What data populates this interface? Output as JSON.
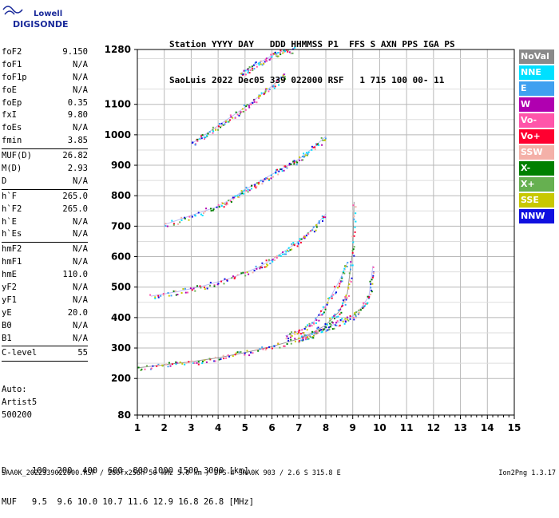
{
  "logo": {
    "line1": "Lowell",
    "line2": "DIGISONDE"
  },
  "header": {
    "labels": "Station YYYY DAY   DDD HHMMSS P1  FFS S AXN PPS IGA PS",
    "values": "SaoLuis 2022 Dec05 339 022000 RSF   1 715 100 00- 11"
  },
  "params_groups": [
    [
      {
        "name": "foF2",
        "value": "9.150"
      },
      {
        "name": "foF1",
        "value": "N/A"
      },
      {
        "name": "foF1p",
        "value": "N/A"
      },
      {
        "name": "foE",
        "value": "N/A"
      },
      {
        "name": "foEp",
        "value": "0.35"
      },
      {
        "name": "fxI",
        "value": "9.80"
      },
      {
        "name": "foEs",
        "value": "N/A"
      },
      {
        "name": "fmin",
        "value": "3.85"
      }
    ],
    [
      {
        "name": "MUF(D)",
        "value": "26.82"
      },
      {
        "name": "M(D)",
        "value": "2.93"
      },
      {
        "name": "D",
        "value": "N/A"
      }
    ],
    [
      {
        "name": "h`F",
        "value": "265.0"
      },
      {
        "name": "h`F2",
        "value": "265.0"
      },
      {
        "name": "h`E",
        "value": "N/A"
      },
      {
        "name": "h`Es",
        "value": "N/A"
      }
    ],
    [
      {
        "name": "hmF2",
        "value": "N/A"
      },
      {
        "name": "hmF1",
        "value": "N/A"
      },
      {
        "name": "hmE",
        "value": "110.0"
      },
      {
        "name": "yF2",
        "value": "N/A"
      },
      {
        "name": "yF1",
        "value": "N/A"
      },
      {
        "name": "yE",
        "value": "20.0"
      },
      {
        "name": "B0",
        "value": "N/A"
      },
      {
        "name": "B1",
        "value": "N/A"
      }
    ],
    [
      {
        "name": "C-level",
        "value": "55"
      }
    ]
  ],
  "auto": {
    "line1": "Auto:",
    "line2": "Artist5",
    "line3": "500200"
  },
  "legend": [
    {
      "label": "NoVal",
      "color": "#8a8a8a",
      "text_color": "#ffffff"
    },
    {
      "label": "NNE",
      "color": "#00e0ff",
      "text_color": "#ffffff"
    },
    {
      "label": "E",
      "color": "#3fa0f0",
      "text_color": "#ffffff"
    },
    {
      "label": "W",
      "color": "#b000b0",
      "text_color": "#ffffff"
    },
    {
      "label": "Vo-",
      "color": "#ff55aa",
      "text_color": "#ffffff"
    },
    {
      "label": "Vo+",
      "color": "#ff0030",
      "text_color": "#ffffff"
    },
    {
      "label": "SSW",
      "color": "#f4b0a8",
      "text_color": "#ffffff"
    },
    {
      "label": "X-",
      "color": "#008000",
      "text_color": "#ffffff"
    },
    {
      "label": "X+",
      "color": "#66b050",
      "text_color": "#ffffff"
    },
    {
      "label": "SSE",
      "color": "#c8c800",
      "text_color": "#ffffff"
    },
    {
      "label": "NNW",
      "color": "#1010e0",
      "text_color": "#ffffff"
    }
  ],
  "bottom": {
    "d_row": "D     100  200  400  600  800 1000 1500 3000 [km]",
    "muf_row": "MUF   9.5  9.6 10.0 10.7 11.6 12.9 16.8 26.8 [MHz]"
  },
  "footer": {
    "left": "SAA0K_2022339022000.RSF / 280fx256h 50 kHz 5.0 km / DPS-4 SAA0K 903 / 2.6 S 315.8 E",
    "right": "Ion2Png 1.3.17"
  },
  "chart_data": {
    "type": "scatter",
    "xlim": [
      1,
      15
    ],
    "ylim": [
      80,
      1280
    ],
    "xticks": [
      "1",
      "2",
      "3",
      "4",
      "5",
      "6",
      "7",
      "8",
      "9",
      "10",
      "11",
      "12",
      "13",
      "14",
      "15"
    ],
    "yticks": [
      "80",
      "200",
      "300",
      "400",
      "500",
      "600",
      "700",
      "800",
      "900",
      "1000",
      "1100",
      "1280"
    ],
    "grid": true,
    "traces": [
      {
        "name": "F-trace 1",
        "x": [
          1.0,
          2.0,
          3.0,
          4.0,
          5.0,
          6.0,
          7.0,
          7.5,
          8.0,
          8.5,
          8.8,
          9.0,
          9.05
        ],
        "y": [
          235,
          245,
          255,
          268,
          285,
          305,
          330,
          350,
          375,
          420,
          480,
          620,
          780
        ]
      },
      {
        "name": "F-trace 2",
        "x": [
          1.5,
          2.5,
          3.5,
          4.5,
          5.5,
          6.0,
          6.5,
          7.0,
          7.5,
          8.0
        ],
        "y": [
          470,
          485,
          505,
          530,
          565,
          590,
          620,
          650,
          690,
          740
        ]
      },
      {
        "name": "F-trace 3",
        "x": [
          2.0,
          3.0,
          4.0,
          4.5,
          5.0,
          5.5,
          6.0,
          6.5,
          7.0,
          7.5,
          8.0
        ],
        "y": [
          705,
          735,
          765,
          790,
          820,
          845,
          870,
          895,
          920,
          955,
          995
        ]
      },
      {
        "name": "F-trace 4",
        "x": [
          3.0,
          3.5,
          4.0,
          4.5,
          5.0,
          5.5,
          6.0,
          6.5
        ],
        "y": [
          970,
          1000,
          1030,
          1060,
          1090,
          1125,
          1160,
          1200
        ]
      },
      {
        "name": "F-trace 5",
        "x": [
          4.8,
          5.2,
          5.6,
          6.0,
          6.4,
          6.8
        ],
        "y": [
          1200,
          1220,
          1240,
          1260,
          1275,
          1280
        ]
      },
      {
        "name": "Ordinary cusp",
        "x": [
          6.5,
          7.0,
          7.5,
          8.0,
          8.5,
          8.8
        ],
        "y": [
          340,
          355,
          380,
          440,
          520,
          580
        ]
      },
      {
        "name": "Extraordinary",
        "x": [
          7.0,
          7.5,
          8.0,
          8.5,
          9.0,
          9.3,
          9.6,
          9.75
        ],
        "y": [
          330,
          345,
          365,
          385,
          405,
          430,
          470,
          570
        ]
      }
    ]
  }
}
